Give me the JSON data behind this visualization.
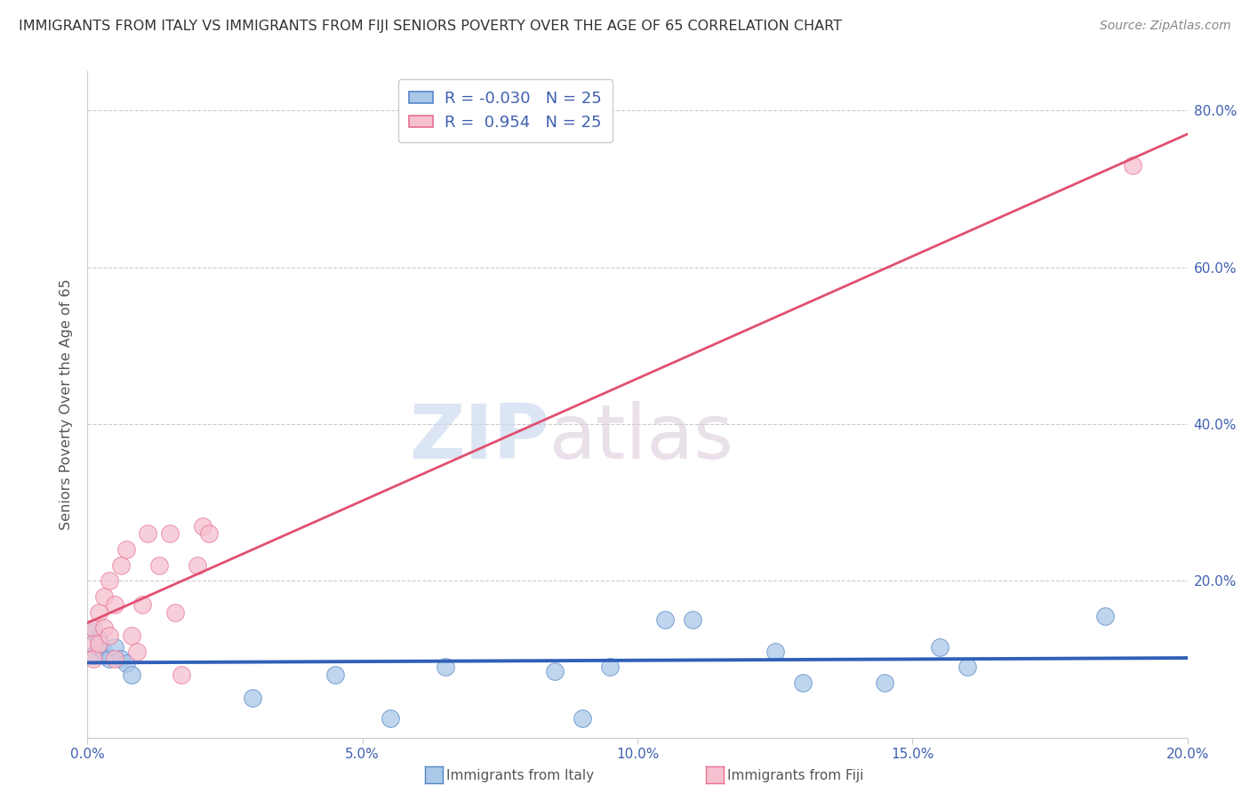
{
  "title": "IMMIGRANTS FROM ITALY VS IMMIGRANTS FROM FIJI SENIORS POVERTY OVER THE AGE OF 65 CORRELATION CHART",
  "source": "Source: ZipAtlas.com",
  "ylabel": "Seniors Poverty Over the Age of 65",
  "xlim": [
    0.0,
    0.2
  ],
  "ylim": [
    0.0,
    0.85
  ],
  "xticks": [
    0.0,
    0.05,
    0.1,
    0.15,
    0.2
  ],
  "xtick_labels": [
    "0.0%",
    "5.0%",
    "10.0%",
    "15.0%",
    "20.0%"
  ],
  "yticks": [
    0.0,
    0.2,
    0.4,
    0.6,
    0.8
  ],
  "ytick_labels_right": [
    "",
    "20.0%",
    "40.0%",
    "60.0%",
    "80.0%"
  ],
  "italy_x": [
    0.001,
    0.001,
    0.002,
    0.002,
    0.003,
    0.004,
    0.005,
    0.006,
    0.007,
    0.008,
    0.03,
    0.045,
    0.055,
    0.065,
    0.085,
    0.09,
    0.095,
    0.105,
    0.11,
    0.125,
    0.13,
    0.145,
    0.155,
    0.16,
    0.185
  ],
  "italy_y": [
    0.135,
    0.105,
    0.125,
    0.115,
    0.11,
    0.1,
    0.115,
    0.1,
    0.095,
    0.08,
    0.05,
    0.08,
    0.025,
    0.09,
    0.085,
    0.025,
    0.09,
    0.15,
    0.15,
    0.11,
    0.07,
    0.07,
    0.115,
    0.09,
    0.155
  ],
  "fiji_x": [
    0.001,
    0.001,
    0.001,
    0.002,
    0.002,
    0.003,
    0.003,
    0.004,
    0.004,
    0.005,
    0.005,
    0.006,
    0.007,
    0.008,
    0.009,
    0.01,
    0.011,
    0.013,
    0.015,
    0.016,
    0.017,
    0.02,
    0.021,
    0.022,
    0.19
  ],
  "fiji_y": [
    0.14,
    0.12,
    0.1,
    0.16,
    0.12,
    0.18,
    0.14,
    0.2,
    0.13,
    0.17,
    0.1,
    0.22,
    0.24,
    0.13,
    0.11,
    0.17,
    0.26,
    0.22,
    0.26,
    0.16,
    0.08,
    0.22,
    0.27,
    0.26,
    0.73
  ],
  "italy_R": -0.03,
  "fiji_R": 0.954,
  "N": 25,
  "italy_color": "#aac8e8",
  "italy_edge_color": "#5585c8",
  "italy_line_color": "#3060b8",
  "fiji_color": "#f5c0d0",
  "fiji_edge_color": "#e87090",
  "fiji_line_color": "#e05070",
  "legend_label_italy": "Immigrants from Italy",
  "legend_label_fiji": "Immigrants from Fiji",
  "watermark_zip": "ZIP",
  "watermark_atlas": "atlas",
  "background_color": "#ffffff",
  "grid_color": "#cccccc",
  "title_color": "#333333",
  "source_color": "#888888",
  "axis_label_color": "#555555",
  "tick_color": "#4060b0"
}
